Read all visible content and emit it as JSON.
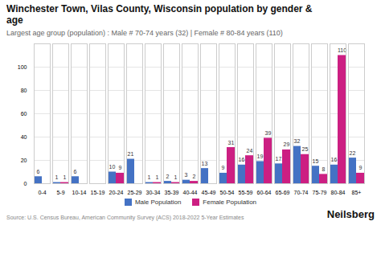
{
  "chart_data": {
    "type": "bar",
    "title": "Winchester Town, Vilas County, Wisconsin population by gender &\nage",
    "subtitle": "Largest age group (population) : Male # 70-74 years (32) | Female # 80-84 years (110)",
    "categories": [
      "0-4",
      "5-9",
      "10-14",
      "15-19",
      "20-24",
      "25-29",
      "30-34",
      "35-39",
      "40-44",
      "45-49",
      "50-54",
      "55-59",
      "60-64",
      "65-69",
      "70-74",
      "75-79",
      "80-84",
      "85+"
    ],
    "series": [
      {
        "name": "Male Population",
        "color": "#4472C4",
        "values": [
          6,
          1,
          6,
          0,
          10,
          21,
          1,
          2,
          3,
          13,
          9,
          16,
          19,
          17,
          32,
          15,
          16,
          22
        ]
      },
      {
        "name": "Female Population",
        "color": "#CC1F82",
        "values": [
          0,
          1,
          0,
          0,
          9,
          0,
          1,
          1,
          2,
          0,
          31,
          24,
          39,
          29,
          25,
          8,
          110,
          9
        ]
      }
    ],
    "ylim": [
      0,
      120
    ],
    "yticks": [
      0,
      20,
      40,
      60,
      80,
      100
    ],
    "grid": true,
    "data_labels": true,
    "legend": "bottom",
    "annotations": [
      "Source: U.S. Census Bureau, American Community Survey (ACS) 2018-2022 5-Year Estimates",
      "Neilsberg"
    ]
  }
}
